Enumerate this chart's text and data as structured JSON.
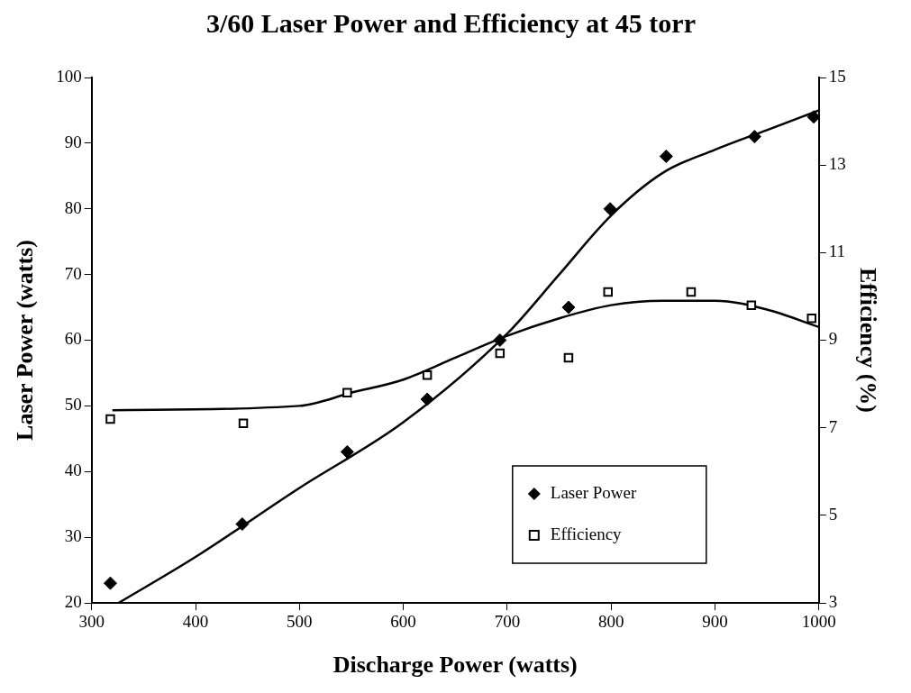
{
  "chart_data": {
    "type": "scatter",
    "title": "3/60 Laser Power and Efficiency at 45 torr",
    "xlabel": "Discharge Power (watts)",
    "ylabel": "Laser Power (watts)",
    "y2label": "Efficiency (%)",
    "xlim": [
      300,
      1000
    ],
    "xticks": [
      300,
      400,
      500,
      600,
      700,
      800,
      900,
      1000
    ],
    "ylim": [
      20,
      100
    ],
    "yticks": [
      20,
      30,
      40,
      50,
      60,
      70,
      80,
      90,
      100
    ],
    "y2lim": [
      3,
      15
    ],
    "y2ticks": [
      3,
      5,
      7,
      9,
      11,
      13,
      15
    ],
    "grid": false,
    "legend": "bottom right",
    "series": [
      {
        "name": "Laser Power",
        "type": "scatter",
        "marker": "diamond",
        "color": "#000000",
        "x": [
          318,
          445,
          546,
          623,
          693,
          759,
          799,
          853,
          938,
          995
        ],
        "values": [
          23,
          32,
          43,
          51,
          60,
          65,
          80,
          88,
          91,
          94
        ]
      },
      {
        "name": "Efficiency",
        "type": "scatter",
        "marker": "square",
        "axis": "y2",
        "color": "#000000",
        "x": [
          318,
          446,
          546,
          623,
          693,
          759,
          797,
          877,
          935,
          993
        ],
        "values": [
          7.2,
          7.1,
          7.8,
          8.2,
          8.7,
          8.6,
          10.1,
          10.1,
          9.8,
          9.5
        ]
      },
      {
        "type": "line",
        "marker": "none",
        "line_style": "solid",
        "color": "#000000",
        "x": [
          326,
          400,
          500,
          600,
          700,
          750,
          800,
          850,
          900,
          950,
          1000
        ],
        "values": [
          20,
          27,
          37.5,
          47.5,
          61,
          70,
          79,
          85.5,
          89,
          92,
          95
        ]
      },
      {
        "type": "line",
        "marker": "none",
        "line_style": "solid",
        "axis": "y2",
        "color": "#000000",
        "x": [
          320,
          500,
          550,
          600,
          650,
          700,
          750,
          800,
          850,
          900,
          950,
          1000
        ],
        "values": [
          7.4,
          7.5,
          7.8,
          8.1,
          8.6,
          9.1,
          9.5,
          9.8,
          9.9,
          9.9,
          9.7,
          9.3
        ]
      }
    ]
  }
}
